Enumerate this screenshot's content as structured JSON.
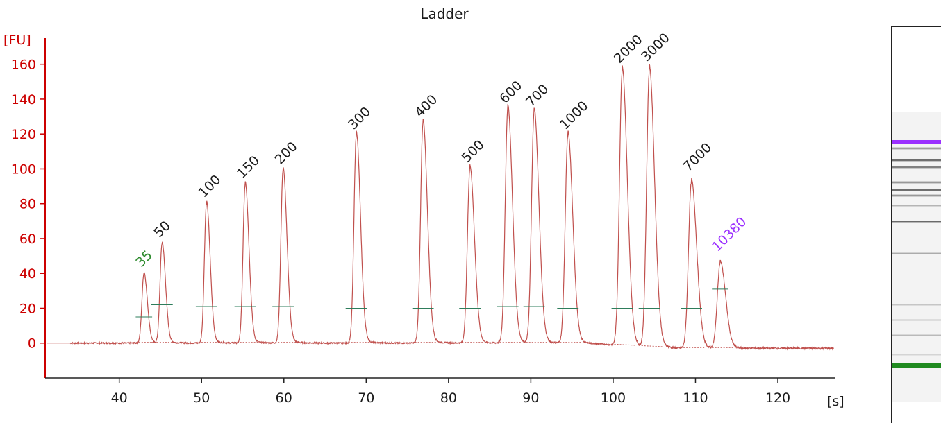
{
  "colors": {
    "axis": "#cc0000",
    "trace": "#c0504d",
    "lower_marker": "#2e8b2e",
    "upper_marker": "#9b30ff",
    "ladder_label": "#1a1a1a",
    "marker_line": "#2e7d5b"
  },
  "chart_data": {
    "type": "line",
    "title": "Ladder",
    "ylabel": "[FU]",
    "xlabel": "[s]",
    "xlim": [
      31,
      127
    ],
    "ylim": [
      -20,
      175
    ],
    "x_ticks": [
      40,
      50,
      60,
      70,
      80,
      90,
      100,
      110,
      120
    ],
    "y_ticks": [
      0,
      20,
      40,
      60,
      80,
      100,
      120,
      140,
      160
    ],
    "grid": false,
    "baseline_end": -3,
    "peaks": [
      {
        "label": "35",
        "x": 43.0,
        "height": 40,
        "marker_y": 15,
        "role": "lower"
      },
      {
        "label": "50",
        "x": 45.2,
        "height": 57,
        "marker_y": 22,
        "role": "ladder"
      },
      {
        "label": "100",
        "x": 50.6,
        "height": 80,
        "marker_y": 21,
        "role": "ladder"
      },
      {
        "label": "150",
        "x": 55.3,
        "height": 91,
        "marker_y": 21,
        "role": "ladder"
      },
      {
        "label": "200",
        "x": 59.9,
        "height": 99,
        "marker_y": 21,
        "role": "ladder"
      },
      {
        "label": "300",
        "x": 68.8,
        "height": 119,
        "marker_y": 20,
        "role": "ladder"
      },
      {
        "label": "400",
        "x": 76.9,
        "height": 126,
        "marker_y": 20,
        "role": "ladder"
      },
      {
        "label": "500",
        "x": 82.6,
        "height": 100,
        "marker_y": 20,
        "role": "ladder"
      },
      {
        "label": "600",
        "x": 87.2,
        "height": 134,
        "marker_y": 21,
        "role": "ladder"
      },
      {
        "label": "700",
        "x": 90.4,
        "height": 132,
        "marker_y": 21,
        "role": "ladder"
      },
      {
        "label": "1000",
        "x": 94.5,
        "height": 119,
        "marker_y": 20,
        "role": "ladder"
      },
      {
        "label": "2000",
        "x": 101.1,
        "height": 157,
        "marker_y": 20,
        "role": "ladder"
      },
      {
        "label": "3000",
        "x": 104.4,
        "height": 158,
        "marker_y": 20,
        "role": "ladder"
      },
      {
        "label": "7000",
        "x": 109.5,
        "height": 95,
        "marker_y": 20,
        "role": "ladder"
      },
      {
        "label": "10380",
        "x": 113.0,
        "height": 49,
        "marker_y": 31,
        "role": "upper"
      }
    ]
  },
  "gel_bands": [
    {
      "pos": 0.071,
      "color": "#9b30ff",
      "thickness": 5,
      "darkness": 1.0
    },
    {
      "pos": 0.089,
      "color": "#555555",
      "thickness": 4,
      "darkness": 0.7
    },
    {
      "pos": 0.119,
      "color": "#333333",
      "thickness": 4,
      "darkness": 0.9
    },
    {
      "pos": 0.136,
      "color": "#444444",
      "thickness": 4,
      "darkness": 0.85
    },
    {
      "pos": 0.175,
      "color": "#555555",
      "thickness": 4,
      "darkness": 0.75
    },
    {
      "pos": 0.194,
      "color": "#333333",
      "thickness": 4,
      "darkness": 0.9
    },
    {
      "pos": 0.209,
      "color": "#555555",
      "thickness": 4,
      "darkness": 0.75
    },
    {
      "pos": 0.234,
      "color": "#777777",
      "thickness": 3,
      "darkness": 0.6
    },
    {
      "pos": 0.275,
      "color": "#333333",
      "thickness": 3,
      "darkness": 0.85
    },
    {
      "pos": 0.356,
      "color": "#666666",
      "thickness": 3,
      "darkness": 0.6
    },
    {
      "pos": 0.485,
      "color": "#888888",
      "thickness": 3,
      "darkness": 0.5
    },
    {
      "pos": 0.524,
      "color": "#888888",
      "thickness": 3,
      "darkness": 0.5
    },
    {
      "pos": 0.563,
      "color": "#777777",
      "thickness": 3,
      "darkness": 0.55
    },
    {
      "pos": 0.611,
      "color": "#999999",
      "thickness": 3,
      "darkness": 0.4
    },
    {
      "pos": 0.635,
      "color": "#1f8a1f",
      "thickness": 6,
      "darkness": 1.0
    }
  ]
}
